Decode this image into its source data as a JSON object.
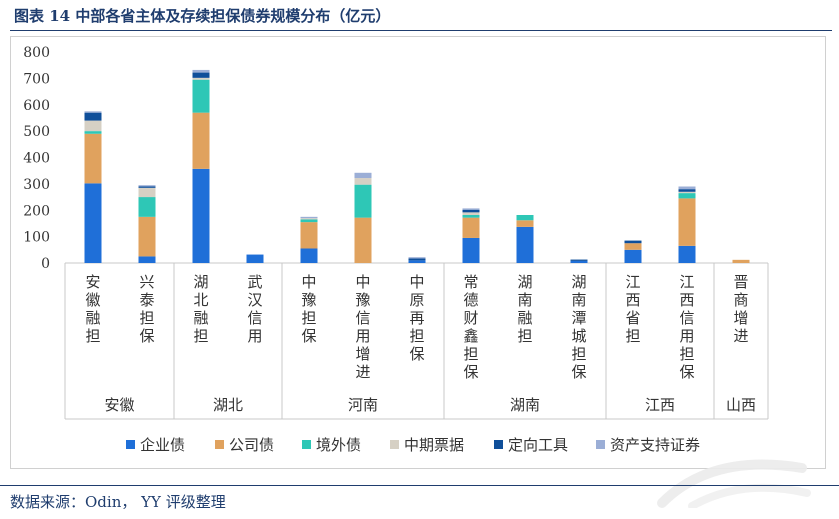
{
  "title": "图表 14 中部各省主体及存续担保债券规模分布（亿元）",
  "source": "数据来源：Odin， YY 评级整理",
  "chart_data": {
    "type": "stacked-bar",
    "ylim": [
      0,
      800
    ],
    "yticks": [
      0,
      100,
      200,
      300,
      400,
      500,
      600,
      700,
      800
    ],
    "groups": [
      {
        "name": "安徽",
        "categories": [
          "安徽融担",
          "兴泰担保"
        ]
      },
      {
        "name": "湖北",
        "categories": [
          "湖北融担",
          "武汉信用"
        ]
      },
      {
        "name": "河南",
        "categories": [
          "中豫担保",
          "中豫信用增进",
          "中原再担保"
        ]
      },
      {
        "name": "湖南",
        "categories": [
          "常德财鑫担保",
          "湖南融担",
          "湖南潭城担保"
        ]
      },
      {
        "name": "江西",
        "categories": [
          "江西省担",
          "江西信用担保"
        ]
      },
      {
        "name": "山西",
        "categories": [
          "晋商增进"
        ]
      }
    ],
    "categories": [
      "安徽融担",
      "兴泰担保",
      "湖北融担",
      "武汉信用",
      "中豫担保",
      "中豫信用增进",
      "中原再担保",
      "常德财鑫担保",
      "湖南融担",
      "湖南潭城担保",
      "江西省担",
      "江西信用担保",
      "晋商增进"
    ],
    "series": [
      {
        "name": "企业债",
        "color": "#1f6fd8",
        "values": [
          302,
          25,
          357,
          32,
          55,
          0,
          10,
          95,
          137,
          8,
          50,
          65,
          0
        ]
      },
      {
        "name": "公司债",
        "color": "#e0a25e",
        "values": [
          188,
          150,
          213,
          0,
          100,
          172,
          0,
          77,
          25,
          0,
          25,
          180,
          12
        ]
      },
      {
        "name": "境外债",
        "color": "#2ec7b6",
        "values": [
          10,
          75,
          125,
          0,
          10,
          125,
          0,
          10,
          20,
          0,
          0,
          20,
          0
        ]
      },
      {
        "name": "中期票据",
        "color": "#d6d0c4",
        "values": [
          40,
          35,
          7,
          0,
          5,
          25,
          0,
          10,
          0,
          0,
          0,
          5,
          0
        ]
      },
      {
        "name": "定向工具",
        "color": "#0f4f9a",
        "values": [
          30,
          5,
          20,
          0,
          0,
          0,
          7,
          10,
          0,
          5,
          10,
          10,
          0
        ]
      },
      {
        "name": "资产支持证券",
        "color": "#9baed6",
        "values": [
          5,
          5,
          10,
          0,
          5,
          20,
          5,
          5,
          0,
          0,
          0,
          10,
          0
        ]
      }
    ]
  }
}
